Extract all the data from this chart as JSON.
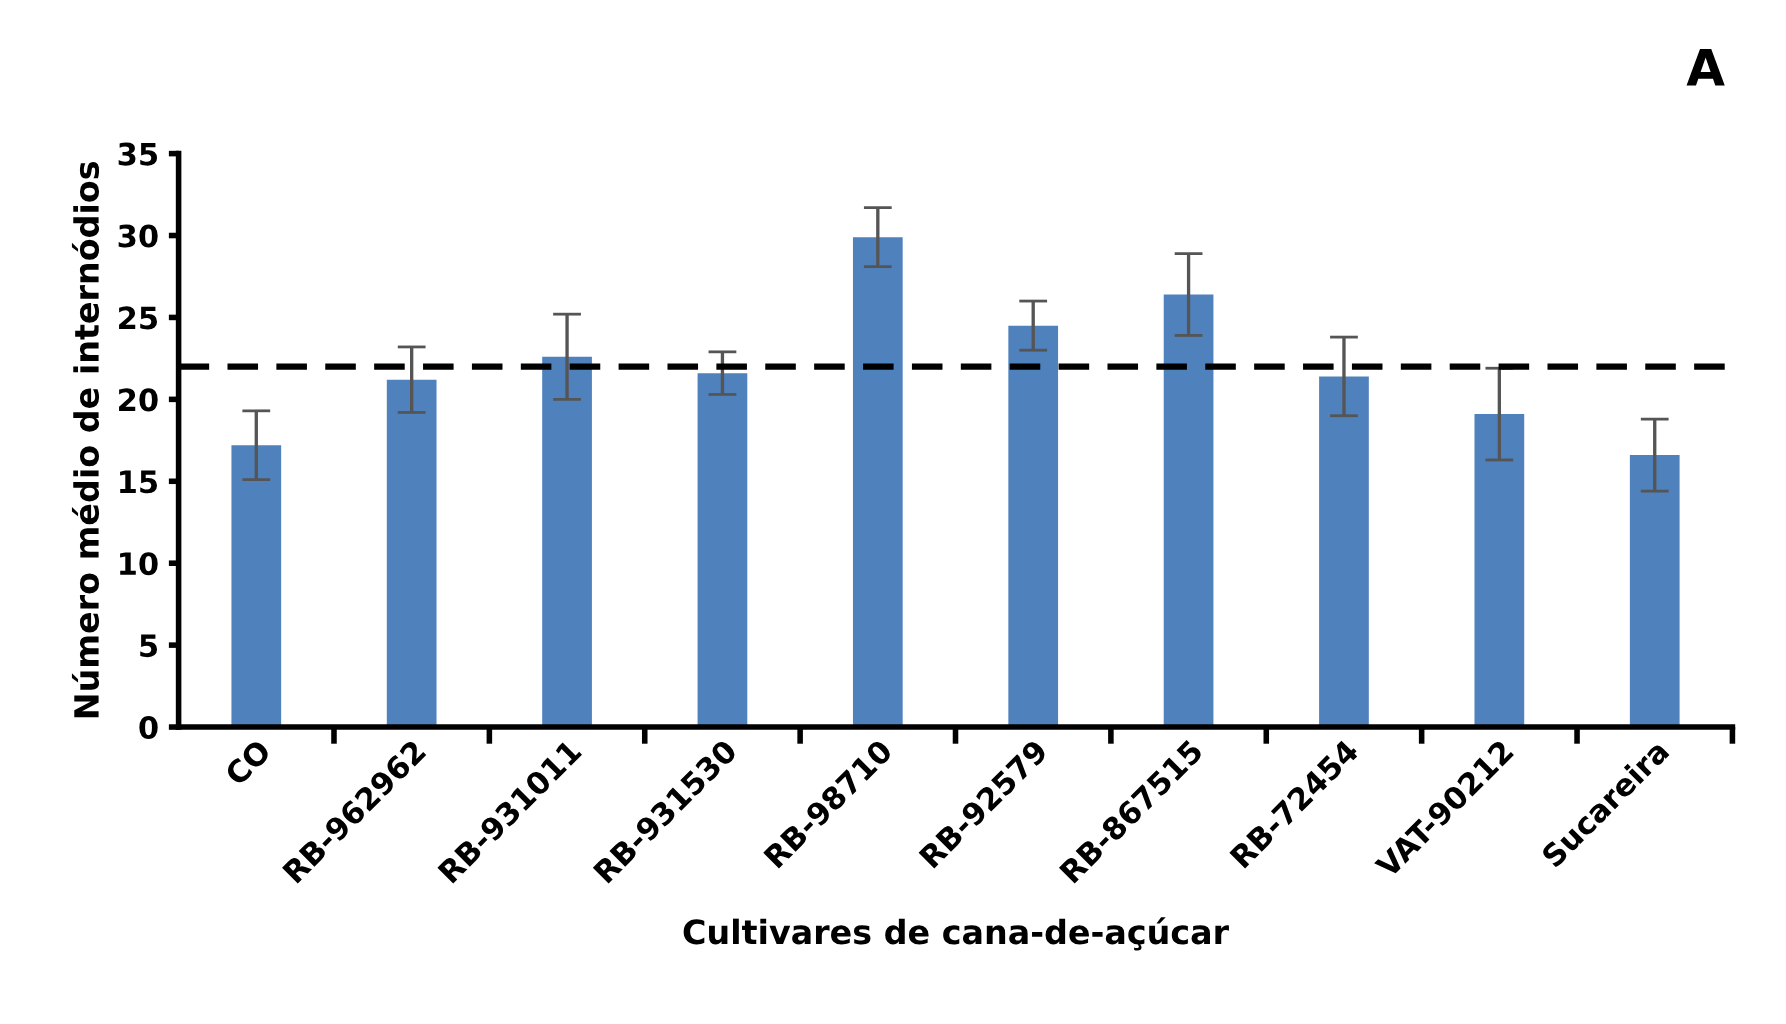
{
  "chart_data": {
    "type": "bar",
    "categories": [
      "CO",
      "RB-962962",
      "RB-931011",
      "RB-931530",
      "RB-98710",
      "RB-92579",
      "RB-867515",
      "RB-72454",
      "VAT-90212",
      "Sucareira"
    ],
    "values": [
      17.2,
      21.2,
      22.6,
      21.6,
      29.9,
      24.5,
      26.4,
      21.4,
      19.1,
      16.6
    ],
    "errors": [
      2.1,
      2.0,
      2.6,
      1.3,
      1.8,
      1.5,
      2.5,
      2.4,
      2.8,
      2.2
    ],
    "color": "#4f81bd",
    "xlabel": "Cultivares de cana-de-açúcar",
    "ylabel": "Número médio de internódios",
    "ylim": [
      0,
      35
    ],
    "yticks": [
      0,
      5,
      10,
      15,
      20,
      25,
      30,
      35
    ],
    "ref_lines": [
      {
        "axis": "y",
        "value": 22.0,
        "label": null,
        "color": "#000000",
        "line_style": "dashed"
      }
    ],
    "annotations": [
      "A"
    ],
    "grid": false
  }
}
